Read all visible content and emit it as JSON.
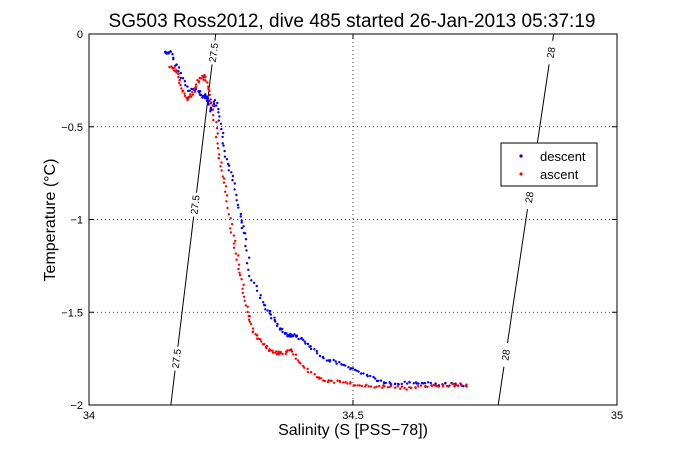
{
  "chart_data": {
    "type": "scatter",
    "title": "SG503 Ross2012, dive 485 started 26-Jan-2013 05:37:19",
    "xlabel": "Salinity (S [PSS−78])",
    "ylabel": "Temperature (°C)",
    "xlim": [
      34,
      35
    ],
    "ylim": [
      -2,
      0
    ],
    "x_ticks": [
      34,
      34.5,
      35
    ],
    "x_tick_labels": [
      "34",
      "34.5",
      "35"
    ],
    "y_ticks": [
      -2,
      -1.5,
      -1,
      -0.5,
      0
    ],
    "y_tick_labels": [
      "−2",
      "−1.5",
      "−1",
      "−0.5",
      "0"
    ],
    "grid": true,
    "legend_position": "right",
    "series": [
      {
        "name": "descent",
        "color": "#0000ff",
        "x": [
          34.145,
          34.155,
          34.17,
          34.19,
          34.205,
          34.215,
          34.222,
          34.227,
          34.232,
          34.24,
          34.25,
          34.26,
          34.272,
          34.285,
          34.295,
          34.305,
          34.33,
          34.345,
          34.36,
          34.375,
          34.38,
          34.385,
          34.4,
          34.42,
          34.445,
          34.47,
          34.495,
          34.52,
          34.55,
          34.575,
          34.6,
          34.63,
          34.66,
          34.69,
          34.715
        ],
        "y": [
          -0.1,
          -0.1,
          -0.2,
          -0.3,
          -0.3,
          -0.34,
          -0.33,
          -0.36,
          -0.42,
          -0.36,
          -0.48,
          -0.66,
          -0.78,
          -0.97,
          -1.08,
          -1.3,
          -1.45,
          -1.52,
          -1.58,
          -1.62,
          -1.63,
          -1.62,
          -1.64,
          -1.69,
          -1.75,
          -1.77,
          -1.8,
          -1.83,
          -1.87,
          -1.89,
          -1.88,
          -1.88,
          -1.89,
          -1.89,
          -1.9
        ]
      },
      {
        "name": "ascent",
        "color": "#ff0000",
        "x": [
          34.155,
          34.165,
          34.175,
          34.185,
          34.195,
          34.205,
          34.215,
          34.222,
          34.23,
          34.24,
          34.25,
          34.26,
          34.27,
          34.28,
          34.29,
          34.3,
          34.31,
          34.325,
          34.34,
          34.355,
          34.37,
          34.385,
          34.4,
          34.43,
          34.455,
          34.48,
          34.51,
          34.54,
          34.57,
          34.6,
          34.63,
          34.66,
          34.69,
          34.715
        ],
        "y": [
          -0.18,
          -0.2,
          -0.28,
          -0.35,
          -0.33,
          -0.27,
          -0.22,
          -0.25,
          -0.35,
          -0.5,
          -0.7,
          -0.85,
          -1.05,
          -1.2,
          -1.35,
          -1.5,
          -1.6,
          -1.65,
          -1.7,
          -1.72,
          -1.72,
          -1.7,
          -1.78,
          -1.85,
          -1.87,
          -1.88,
          -1.89,
          -1.9,
          -1.9,
          -1.91,
          -1.9,
          -1.9,
          -1.89,
          -1.89
        ]
      }
    ],
    "contours": [
      {
        "label": "27.5",
        "x_top": 34.24,
        "x_bottom": 34.155,
        "label_positions": [
          -0.1,
          -0.92,
          -1.75
        ]
      },
      {
        "label": "28",
        "x_top": 34.88,
        "x_bottom": 34.775,
        "label_positions": [
          -0.1,
          -0.88,
          -1.73
        ]
      }
    ]
  }
}
